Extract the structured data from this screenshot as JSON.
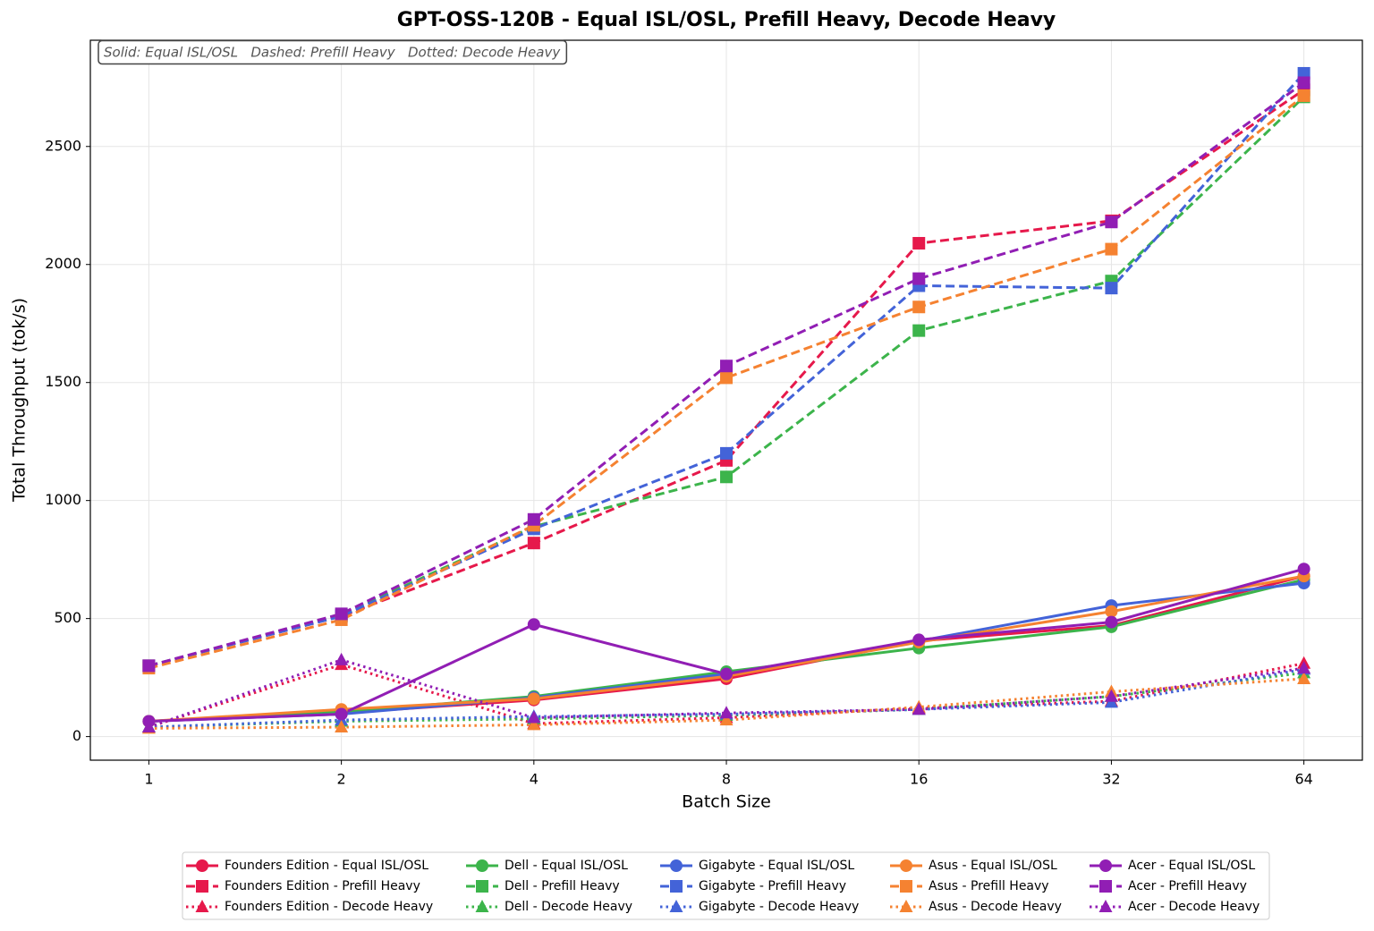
{
  "chart_data": {
    "type": "line",
    "title": "GPT-OSS-120B - Equal ISL/OSL, Prefill Heavy, Decode Heavy",
    "annotation": "Solid: Equal ISL/OSL   Dashed: Prefill Heavy   Dotted: Decode Heavy",
    "x_label": "Batch Size",
    "y_label": "Total Throughput (tok/s)",
    "x": [
      1,
      2,
      4,
      8,
      16,
      32,
      64
    ],
    "xscale": "log2",
    "xlim": [
      0.81,
      79
    ],
    "xticks": [
      1,
      2,
      4,
      8,
      16,
      32,
      64
    ],
    "ylim": [
      -100,
      2950
    ],
    "yticks": [
      0,
      500,
      1000,
      1500,
      2000,
      2500
    ],
    "grid": true,
    "legend": "bottom",
    "series": [
      {
        "name": "Founders Edition - Equal ISL/OSL",
        "color": "#e6194b",
        "linestyle": "solid",
        "marker": "circle",
        "values": [
          65,
          100,
          155,
          245,
          405,
          470,
          680
        ]
      },
      {
        "name": "Founders Edition - Prefill Heavy",
        "color": "#e6194b",
        "linestyle": "dashed",
        "marker": "square",
        "values": [
          300,
          510,
          820,
          1170,
          2090,
          2185,
          2740
        ]
      },
      {
        "name": "Founders Edition - Decode Heavy",
        "color": "#e6194b",
        "linestyle": "dotted",
        "marker": "triangle",
        "values": [
          40,
          305,
          55,
          80,
          120,
          150,
          310
        ]
      },
      {
        "name": "Dell - Equal ISL/OSL",
        "color": "#3cb44b",
        "linestyle": "solid",
        "marker": "circle",
        "values": [
          65,
          105,
          170,
          275,
          375,
          465,
          665
        ]
      },
      {
        "name": "Dell - Prefill Heavy",
        "color": "#3cb44b",
        "linestyle": "dashed",
        "marker": "square",
        "values": [
          300,
          515,
          890,
          1100,
          1720,
          1930,
          2710
        ]
      },
      {
        "name": "Dell - Decode Heavy",
        "color": "#3cb44b",
        "linestyle": "dotted",
        "marker": "triangle",
        "values": [
          40,
          65,
          75,
          90,
          115,
          170,
          270
        ]
      },
      {
        "name": "Gigabyte - Equal ISL/OSL",
        "color": "#4363d8",
        "linestyle": "solid",
        "marker": "circle",
        "values": [
          65,
          95,
          165,
          265,
          405,
          555,
          650
        ]
      },
      {
        "name": "Gigabyte - Prefill Heavy",
        "color": "#4363d8",
        "linestyle": "dashed",
        "marker": "square",
        "values": [
          300,
          510,
          880,
          1200,
          1910,
          1900,
          2810
        ]
      },
      {
        "name": "Gigabyte - Decode Heavy",
        "color": "#4363d8",
        "linestyle": "dotted",
        "marker": "triangle",
        "values": [
          40,
          70,
          85,
          95,
          115,
          145,
          285
        ]
      },
      {
        "name": "Asus - Equal ISL/OSL",
        "color": "#f58231",
        "linestyle": "solid",
        "marker": "circle",
        "values": [
          65,
          115,
          160,
          255,
          400,
          530,
          680
        ]
      },
      {
        "name": "Asus - Prefill Heavy",
        "color": "#f58231",
        "linestyle": "dashed",
        "marker": "square",
        "values": [
          290,
          495,
          895,
          1520,
          1820,
          2065,
          2715
        ]
      },
      {
        "name": "Asus - Decode Heavy",
        "color": "#f58231",
        "linestyle": "dotted",
        "marker": "triangle",
        "values": [
          35,
          40,
          50,
          70,
          125,
          190,
          245
        ]
      },
      {
        "name": "Acer - Equal ISL/OSL",
        "color": "#911eb4",
        "linestyle": "solid",
        "marker": "circle",
        "values": [
          65,
          95,
          475,
          265,
          410,
          485,
          710
        ]
      },
      {
        "name": "Acer - Prefill Heavy",
        "color": "#911eb4",
        "linestyle": "dashed",
        "marker": "square",
        "values": [
          300,
          520,
          920,
          1570,
          1940,
          2180,
          2770
        ]
      },
      {
        "name": "Acer - Decode Heavy",
        "color": "#911eb4",
        "linestyle": "dotted",
        "marker": "triangle",
        "values": [
          40,
          325,
          80,
          100,
          115,
          170,
          290
        ]
      }
    ]
  }
}
